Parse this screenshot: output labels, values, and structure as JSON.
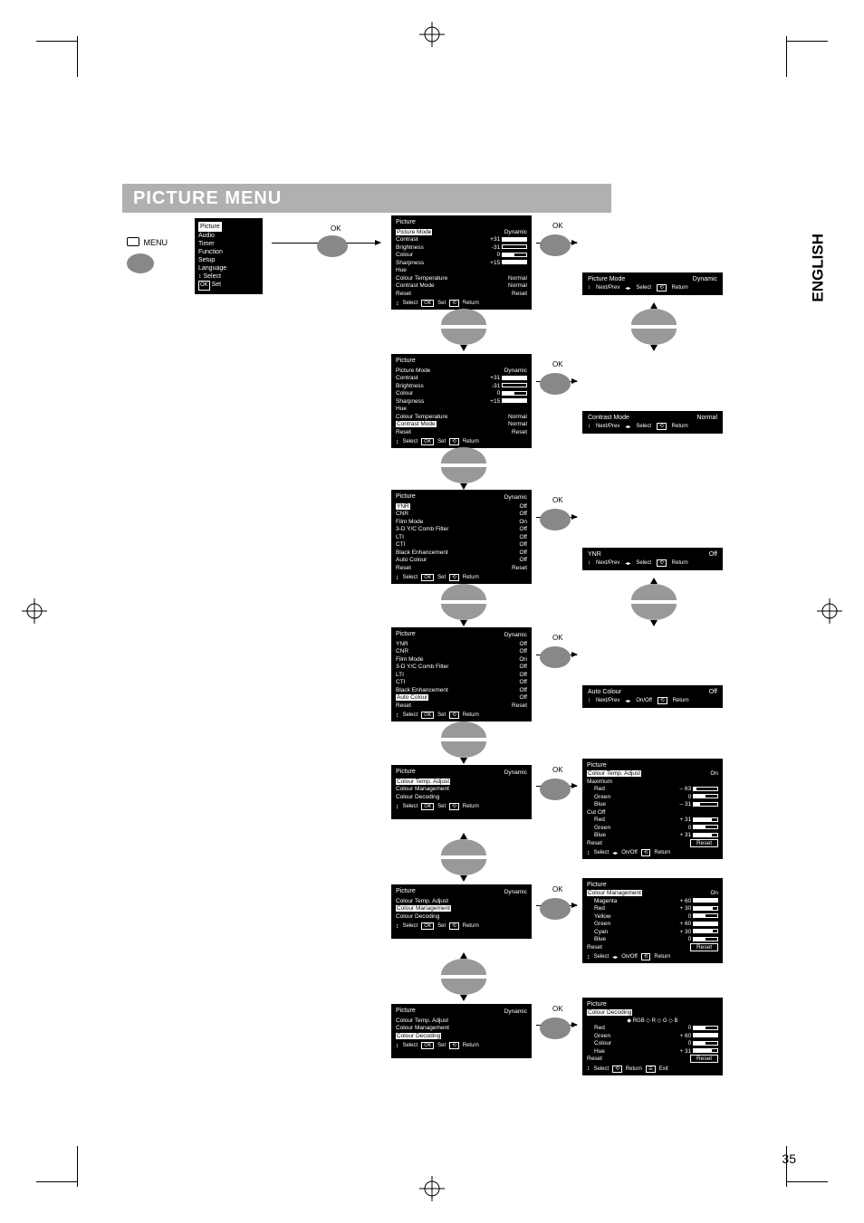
{
  "page": {
    "number": "35"
  },
  "header": {
    "title": "PICTURE MENU"
  },
  "side_label": "ENGLISH",
  "menu_button": {
    "label": "MENU"
  },
  "ok_label": "OK",
  "main_menu": {
    "items": [
      "Picture",
      "Audio",
      "Timer",
      "Function",
      "Setup",
      "Language"
    ],
    "highlighted": "Picture",
    "footer_select": "Select",
    "footer_set": "Set",
    "footer_ok": "OK",
    "updown": "↕"
  },
  "osd1": {
    "title": "Picture",
    "rows": [
      {
        "l": "Picture Mode",
        "v": "Dynamic",
        "hl": true
      },
      {
        "l": "Contrast",
        "v": "+31",
        "slider": 1.0
      },
      {
        "l": "Brightness",
        "v": "-31",
        "slider": 0.0
      },
      {
        "l": "Colour",
        "v": "0",
        "slider": 0.5
      },
      {
        "l": "Sharpness",
        "v": "+15",
        "slider": 1.0
      },
      {
        "l": "Hue",
        "v": ""
      },
      {
        "l": "Colour Temperature",
        "v": "Normal"
      },
      {
        "l": "Contrast Mode",
        "v": "Normal"
      },
      {
        "l": "Reset",
        "v": "Reset"
      }
    ],
    "footer": {
      "select": "Select",
      "ok": "OK",
      "set": "Set",
      "ret": "Return"
    }
  },
  "strip1": {
    "l": "Picture Mode",
    "v": "Dynamic",
    "nextprev": "Next/Prev",
    "sel": "Select",
    "ret": "Return"
  },
  "osd2": {
    "title": "Picture",
    "rows": [
      {
        "l": "Picture Mode",
        "v": "Dynamic"
      },
      {
        "l": "Contrast",
        "v": "+31",
        "slider": 1.0
      },
      {
        "l": "Brightness",
        "v": "-31",
        "slider": 0.0
      },
      {
        "l": "Colour",
        "v": "0",
        "slider": 0.5
      },
      {
        "l": "Sharpness",
        "v": "+15",
        "slider": 1.0
      },
      {
        "l": "Hue",
        "v": ""
      },
      {
        "l": "Colour Temperature",
        "v": "Normal"
      },
      {
        "l": "Contrast Mode",
        "v": "Normal",
        "hl": true
      },
      {
        "l": "Reset",
        "v": "Reset"
      }
    ],
    "footer": {
      "select": "Select",
      "ok": "OK",
      "set": "Set",
      "ret": "Return"
    }
  },
  "strip2": {
    "l": "Contrast Mode",
    "v": "Normal",
    "nextprev": "Next/Prev",
    "sel": "Select",
    "ret": "Return"
  },
  "osd3": {
    "title": "Picture",
    "mode": "Dynamic",
    "rows": [
      {
        "l": "YNR",
        "v": "Off",
        "hl": true
      },
      {
        "l": "CNR",
        "v": "Off"
      },
      {
        "l": "Film Mode",
        "v": "On"
      },
      {
        "l": "3-D Y/C Comb Filter",
        "v": "Off"
      },
      {
        "l": "LTI",
        "v": "Off"
      },
      {
        "l": "CTI",
        "v": "Off"
      },
      {
        "l": "Black Enhancement",
        "v": "Off"
      },
      {
        "l": "Auto Colour",
        "v": "Off"
      },
      {
        "l": "Reset",
        "v": "Reset"
      }
    ],
    "footer": {
      "select": "Select",
      "ok": "OK",
      "set": "Set",
      "ret": "Return"
    }
  },
  "strip3": {
    "l": "YNR",
    "v": "Off",
    "nextprev": "Next/Prev",
    "sel": "Select",
    "ret": "Return"
  },
  "osd4": {
    "title": "Picture",
    "mode": "Dynamic",
    "rows": [
      {
        "l": "YNR",
        "v": "Off"
      },
      {
        "l": "CNR",
        "v": "Off"
      },
      {
        "l": "Film Mode",
        "v": "On"
      },
      {
        "l": "3-D Y/C Comb Filter",
        "v": "Off"
      },
      {
        "l": "LTI",
        "v": "Off"
      },
      {
        "l": "CTI",
        "v": "Off"
      },
      {
        "l": "Black Enhancement",
        "v": "Off"
      },
      {
        "l": "Auto Colour",
        "v": "Off",
        "hl": true
      },
      {
        "l": "Reset",
        "v": "Reset"
      }
    ],
    "footer": {
      "select": "Select",
      "ok": "OK",
      "set": "Set",
      "ret": "Return"
    }
  },
  "strip4": {
    "l": "Auto Colour",
    "v": "Off",
    "nextprev": "Next/Prev",
    "sel": "On/Off",
    "ret": "Return"
  },
  "osd5": {
    "title": "Picture",
    "mode": "Dynamic",
    "rows": [
      {
        "l": "Colour Temp. Adjust",
        "hl": true
      },
      {
        "l": "Colour Management"
      },
      {
        "l": "Colour Decoding"
      }
    ],
    "footer": {
      "select": "Select",
      "ok": "OK",
      "set": "Set",
      "ret": "Return"
    }
  },
  "osd5b": {
    "title": "Picture",
    "header": {
      "l": "Colour Temp. Adjust",
      "v": "On",
      "hl": true
    },
    "sub1": "Maximum",
    "rows1": [
      {
        "l": "Red",
        "v": "– 63",
        "slider": 0.1
      },
      {
        "l": "Green",
        "v": "0",
        "slider": 0.5
      },
      {
        "l": "Blue",
        "v": "– 31",
        "slider": 0.25
      }
    ],
    "sub2": "Cut Off",
    "rows2": [
      {
        "l": "Red",
        "v": "+ 31",
        "slider": 0.75
      },
      {
        "l": "Green",
        "v": "0",
        "slider": 0.5
      },
      {
        "l": "Blue",
        "v": "+ 31",
        "slider": 0.75
      }
    ],
    "reset": {
      "l": "Reset",
      "v": "Reset"
    },
    "footer": {
      "select": "Select",
      "onoff": "On/Off",
      "ret": "Return"
    }
  },
  "osd6": {
    "title": "Picture",
    "mode": "Dynamic",
    "rows": [
      {
        "l": "Colour Temp. Adjust"
      },
      {
        "l": "Colour Management",
        "hl": true
      },
      {
        "l": "Colour Decoding"
      }
    ],
    "footer": {
      "select": "Select",
      "ok": "OK",
      "set": "Set",
      "ret": "Return"
    }
  },
  "osd6b": {
    "title": "Picture",
    "header": {
      "l": "Colour Management",
      "v": "On",
      "hl": true
    },
    "rows": [
      {
        "l": "Magenta",
        "v": "+ 60",
        "slider": 1.0
      },
      {
        "l": "Red",
        "v": "+ 30",
        "slider": 0.8
      },
      {
        "l": "Yellow",
        "v": "0",
        "slider": 0.5
      },
      {
        "l": "Green",
        "v": "+ 60",
        "slider": 1.0
      },
      {
        "l": "Cyan",
        "v": "+ 30",
        "slider": 0.8
      },
      {
        "l": "Blue",
        "v": "0",
        "slider": 0.5
      }
    ],
    "reset": {
      "l": "Reset",
      "v": "Reset"
    },
    "footer": {
      "select": "Select",
      "onoff": "On/Off",
      "ret": "Return"
    }
  },
  "osd7": {
    "title": "Picture",
    "mode": "Dynamic",
    "rows": [
      {
        "l": "Colour Temp. Adjust"
      },
      {
        "l": "Colour Management"
      },
      {
        "l": "Colour Decoding",
        "hl": true
      }
    ],
    "footer": {
      "select": "Select",
      "ok": "OK",
      "set": "Set",
      "ret": "Return"
    }
  },
  "osd7b": {
    "title": "Picture",
    "header": {
      "l": "Colour Decoding",
      "hl": true
    },
    "cols": "◆ RGB    ◇    R    ◇    G    ◇    B",
    "rows": [
      {
        "l": "Red",
        "v": "0",
        "slider": 0.5
      },
      {
        "l": "Green",
        "v": "+ 60",
        "slider": 1.0
      },
      {
        "l": "Colour",
        "v": "0",
        "slider": 0.5
      },
      {
        "l": "Hue",
        "v": "+ 31",
        "slider": 0.75
      }
    ],
    "reset": {
      "l": "Reset",
      "v": "Reset"
    },
    "footer": {
      "select": "Select",
      "ret": "Return",
      "exit": "Exit"
    }
  }
}
